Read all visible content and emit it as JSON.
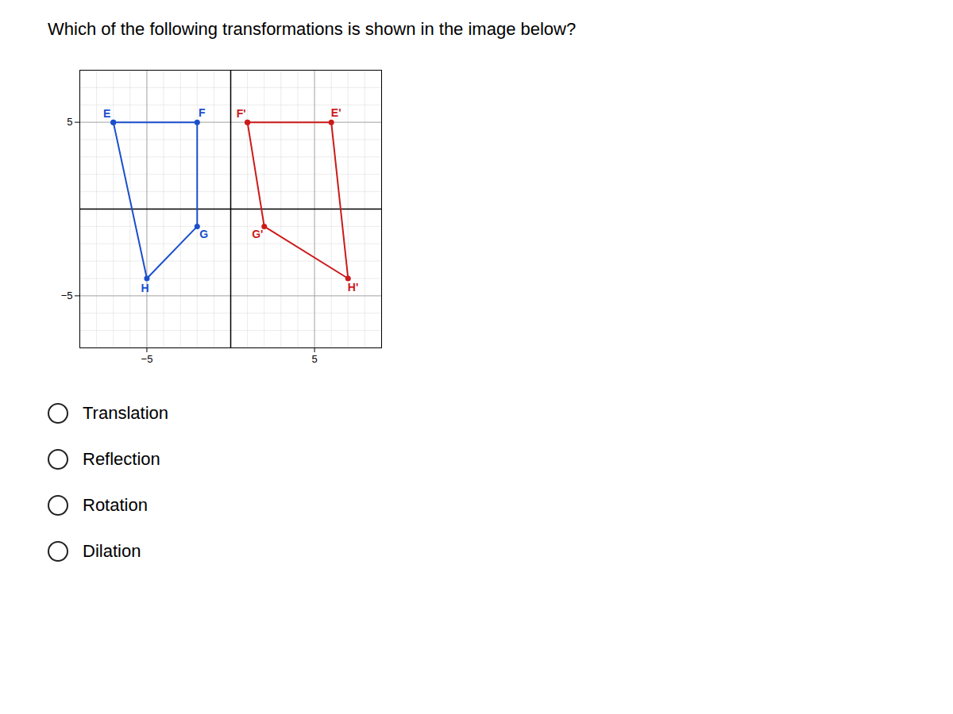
{
  "chart_data": {
    "type": "line",
    "title": "Which of the following transformations is shown in the image below?",
    "xlim": [
      -9,
      9
    ],
    "ylim": [
      -8,
      8
    ],
    "xticks": [
      -5,
      5
    ],
    "yticks": [
      -5,
      5
    ],
    "grid": true,
    "series": [
      {
        "color": "#1a4fcc",
        "x": [
          -7,
          -2,
          -2,
          -5,
          -7
        ],
        "y": [
          5,
          5,
          -1,
          -4,
          5
        ],
        "labels": [
          "E",
          "F",
          "G",
          "H"
        ],
        "marker": "circle"
      },
      {
        "color": "#cc1a1a",
        "x": [
          1,
          6,
          7,
          2,
          1
        ],
        "y": [
          5,
          5,
          -4,
          -1,
          5
        ],
        "labels": [
          "F'",
          "E'",
          "H'",
          "G'"
        ],
        "marker": "circle"
      }
    ],
    "annotations": [
      "Translation",
      "Reflection",
      "Rotation",
      "Dilation"
    ]
  }
}
